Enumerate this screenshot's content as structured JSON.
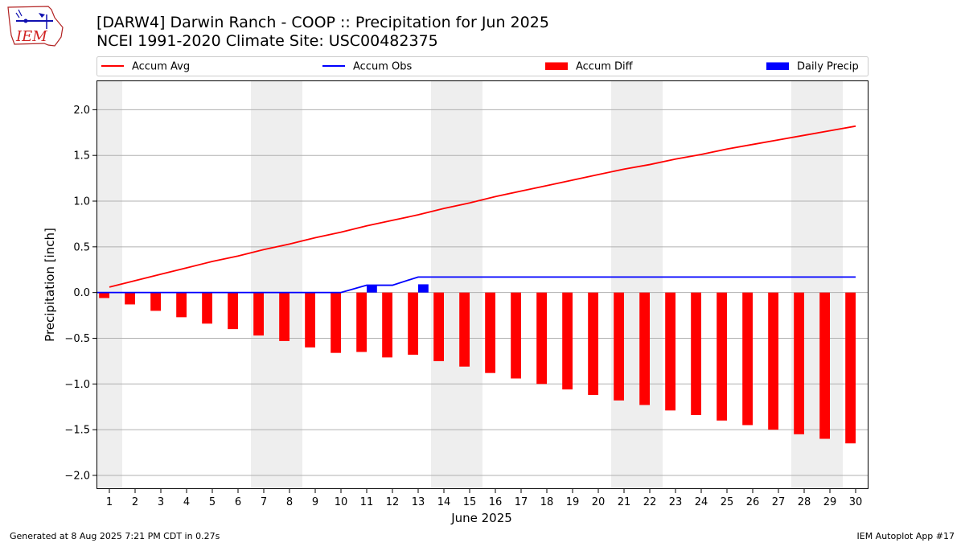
{
  "header": {
    "title_line1": "[DARW4] Darwin Ranch - COOP :: Precipitation for Jun 2025",
    "title_line2": "NCEI 1991-2020 Climate Site: USC00482375"
  },
  "logo": {
    "text": "IEM",
    "icon": "iowa-state-outline-logo"
  },
  "footer": {
    "generated": "Generated at 8 Aug 2025 7:21 PM CDT in 0.27s",
    "app": "IEM Autoplot App #17"
  },
  "chart_data": {
    "type": "bar",
    "xlabel": "June 2025",
    "ylabel": "Precipitation [inch]",
    "ylim": [
      -2.15,
      2.32
    ],
    "yticks": [
      -2.0,
      -1.5,
      -1.0,
      -0.5,
      0.0,
      0.5,
      1.0,
      1.5,
      2.0
    ],
    "ytick_labels": [
      "−2.0",
      "−1.5",
      "−1.0",
      "−0.5",
      "0.0",
      "0.5",
      "1.0",
      "1.5",
      "2.0"
    ],
    "xlim": [
      0.5,
      30.5
    ],
    "x": [
      1,
      2,
      3,
      4,
      5,
      6,
      7,
      8,
      9,
      10,
      11,
      12,
      13,
      14,
      15,
      16,
      17,
      18,
      19,
      20,
      21,
      22,
      23,
      24,
      25,
      26,
      27,
      28,
      29,
      30
    ],
    "grid": "horizontal",
    "legend_placement": "top",
    "weekend_shading": [
      [
        0.5,
        1.5
      ],
      [
        6.5,
        8.5
      ],
      [
        13.5,
        15.5
      ],
      [
        20.5,
        22.5
      ],
      [
        27.5,
        29.5
      ]
    ],
    "colors": {
      "avg": "#ff0000",
      "obs": "#0000ff",
      "diff": "#ff0000",
      "daily": "#0000ff",
      "shade": "#eeeeee",
      "grid": "#b0b0b0"
    },
    "legend": [
      {
        "label": "Accum Avg",
        "kind": "line",
        "color": "#ff0000"
      },
      {
        "label": "Accum Obs",
        "kind": "line",
        "color": "#0000ff"
      },
      {
        "label": "Accum Diff",
        "kind": "bar",
        "color": "#ff0000"
      },
      {
        "label": "Daily Precip",
        "kind": "bar",
        "color": "#0000ff"
      }
    ],
    "series": [
      {
        "name": "Accum Avg",
        "type": "line",
        "values": [
          0.06,
          0.13,
          0.2,
          0.27,
          0.34,
          0.4,
          0.47,
          0.53,
          0.6,
          0.66,
          0.73,
          0.79,
          0.85,
          0.92,
          0.98,
          1.05,
          1.11,
          1.17,
          1.23,
          1.29,
          1.35,
          1.4,
          1.46,
          1.51,
          1.57,
          1.62,
          1.67,
          1.72,
          1.77,
          1.82
        ]
      },
      {
        "name": "Accum Obs",
        "type": "line",
        "values": [
          0,
          0,
          0,
          0,
          0,
          0,
          0,
          0,
          0,
          0,
          0.08,
          0.08,
          0.17,
          0.17,
          0.17,
          0.17,
          0.17,
          0.17,
          0.17,
          0.17,
          0.17,
          0.17,
          0.17,
          0.17,
          0.17,
          0.17,
          0.17,
          0.17,
          0.17,
          0.17
        ]
      },
      {
        "name": "Accum Diff",
        "type": "bar",
        "values": [
          -0.06,
          -0.13,
          -0.2,
          -0.27,
          -0.34,
          -0.4,
          -0.47,
          -0.53,
          -0.6,
          -0.66,
          -0.65,
          -0.71,
          -0.68,
          -0.75,
          -0.81,
          -0.88,
          -0.94,
          -1.0,
          -1.06,
          -1.12,
          -1.18,
          -1.23,
          -1.29,
          -1.34,
          -1.4,
          -1.45,
          -1.5,
          -1.55,
          -1.6,
          -1.65
        ]
      },
      {
        "name": "Daily Precip",
        "type": "bar",
        "values": [
          0,
          0,
          0,
          0,
          0,
          0,
          0,
          0,
          0,
          0,
          0.08,
          0,
          0.09,
          0,
          0,
          0,
          0,
          0,
          0,
          0,
          0,
          0,
          0,
          0,
          0,
          0,
          0,
          0,
          0,
          0
        ]
      }
    ]
  }
}
